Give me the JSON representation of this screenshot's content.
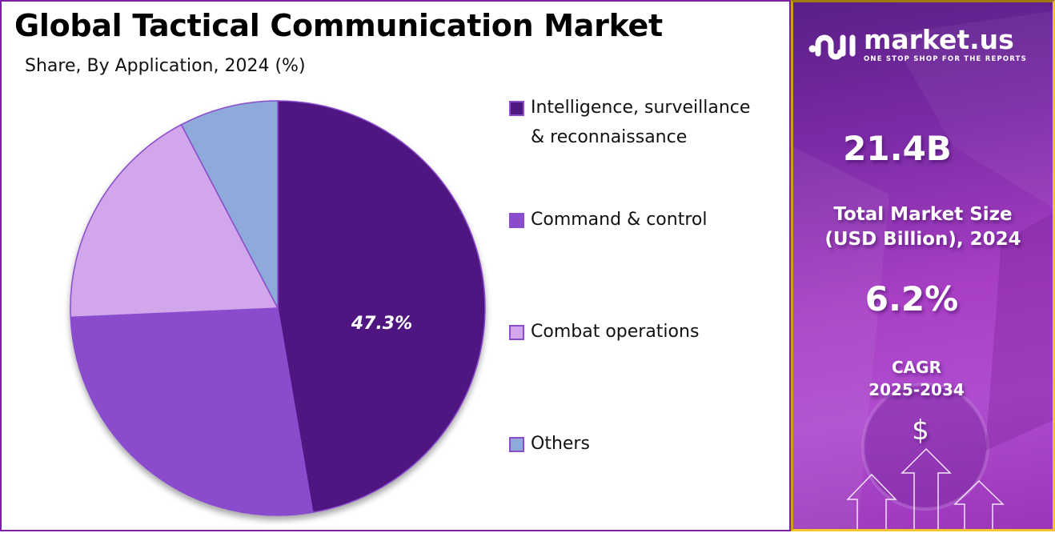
{
  "header": {
    "title": "Global Tactical Communication Market",
    "subtitle": "Share, By Application, 2024 (%)"
  },
  "chart_data": {
    "type": "pie",
    "title": "Global Tactical Communication Market",
    "subtitle": "Share, By Application, 2024 (%)",
    "categories": [
      "Intelligence, surveillance & reconnaissance",
      "Command & control",
      "Combat operations",
      "Others"
    ],
    "values": [
      47.3,
      27.0,
      18.0,
      7.7
    ],
    "colors": [
      "#4f1782",
      "#8a4ccc",
      "#d2a6eb",
      "#8eaadb"
    ],
    "data_labels": [
      "47.3%",
      "",
      "",
      ""
    ],
    "start_angle": 0,
    "direction": "clockwise",
    "legend_position": "right"
  },
  "pie": {
    "label": "47.3%"
  },
  "legend": {
    "items": [
      {
        "line1": "Intelligence, surveillance",
        "line2": "& reconnaissance",
        "color": "#4f1782"
      },
      {
        "line1": "Command & control",
        "color": "#8a4ccc"
      },
      {
        "line1": "Combat operations",
        "color": "#d2a6eb"
      },
      {
        "line1": "Others",
        "color": "#8eaadb"
      }
    ]
  },
  "sidebar": {
    "brand_name": "market.us",
    "brand_tagline": "ONE STOP SHOP FOR THE REPORTS",
    "market_size_value": "21.4B",
    "market_size_label_1": "Total Market Size",
    "market_size_label_2": "(USD Billion), 2024",
    "cagr_value": "6.2%",
    "cagr_label_1": "CAGR",
    "cagr_label_2": "2025-2034",
    "currency_symbol": "$"
  },
  "colors": {
    "border_left": "#7a21a6",
    "border_right": "#f3c12a",
    "gradient_top": "#5a1f86",
    "gradient_bottom": "#b04ccf"
  }
}
